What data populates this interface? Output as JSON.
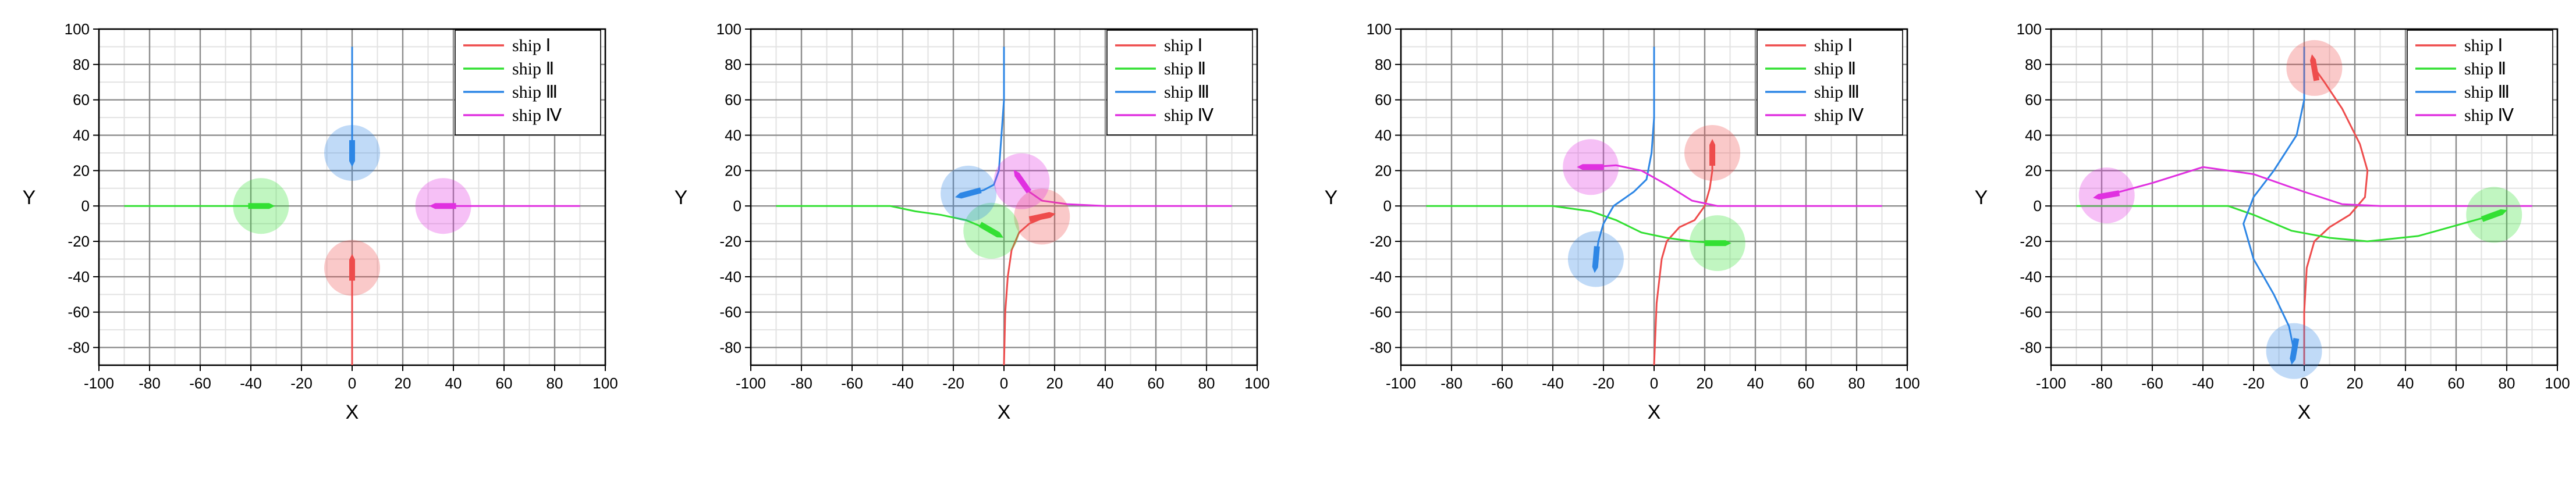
{
  "colors": {
    "ship1": "#ee4c4c",
    "ship2": "#33e033",
    "ship3": "#2d86e5",
    "ship4": "#e030e0",
    "grid_major": "#8c8c8c",
    "grid_minor": "#e2e2e2",
    "axis": "#000000"
  },
  "chart_data": [
    {
      "type": "line",
      "title": "",
      "xlabel": "X",
      "ylabel": "Y",
      "xlim": [
        -100,
        100
      ],
      "ylim": [
        -90,
        100
      ],
      "xticks": [
        "-100",
        "-80",
        "-60",
        "-40",
        "-20",
        "0",
        "20",
        "40",
        "60",
        "80",
        "100"
      ],
      "yticks": [
        "-80",
        "-60",
        "-40",
        "-20",
        "0",
        "20",
        "40",
        "60",
        "80",
        "100"
      ],
      "grid": true,
      "legend_position": "top-right",
      "series": [
        {
          "name": "ship Ⅰ",
          "color_key": "ship1",
          "x": [
            0,
            0,
            0,
            0
          ],
          "y": [
            -90,
            -70,
            -50,
            -35
          ],
          "ship": [
            0,
            -35
          ],
          "heading": 90
        },
        {
          "name": "ship Ⅱ",
          "color_key": "ship2",
          "x": [
            -90,
            -70,
            -50,
            -36
          ],
          "y": [
            0,
            0,
            0,
            0
          ],
          "ship": [
            -36,
            0
          ],
          "heading": 0
        },
        {
          "name": "ship Ⅲ",
          "color_key": "ship3",
          "x": [
            0,
            0,
            0,
            0
          ],
          "y": [
            90,
            70,
            50,
            30
          ],
          "ship": [
            0,
            30
          ],
          "heading": -90
        },
        {
          "name": "ship Ⅳ",
          "color_key": "ship4",
          "x": [
            90,
            70,
            50,
            36
          ],
          "y": [
            0,
            0,
            0,
            0
          ],
          "ship": [
            36,
            0
          ],
          "heading": 180
        }
      ]
    },
    {
      "type": "line",
      "title": "",
      "xlabel": "X",
      "ylabel": "Y",
      "xlim": [
        -100,
        100
      ],
      "ylim": [
        -90,
        100
      ],
      "xticks": [
        "-100",
        "-80",
        "-60",
        "-40",
        "-20",
        "0",
        "20",
        "40",
        "60",
        "80",
        "100"
      ],
      "yticks": [
        "-80",
        "-60",
        "-40",
        "-20",
        "0",
        "20",
        "40",
        "60",
        "80",
        "100"
      ],
      "grid": true,
      "legend_position": "top-right",
      "series": [
        {
          "name": "ship Ⅰ",
          "color_key": "ship1",
          "x": [
            0,
            0.5,
            1.5,
            3,
            6,
            10,
            15
          ],
          "y": [
            -90,
            -60,
            -40,
            -25,
            -15,
            -10,
            -7
          ],
          "ship": [
            15,
            -6
          ],
          "heading": 12
        },
        {
          "name": "ship Ⅱ",
          "color_key": "ship2",
          "x": [
            -90,
            -60,
            -45,
            -35,
            -25,
            -15,
            -5
          ],
          "y": [
            0,
            0,
            0,
            -3,
            -5,
            -8,
            -14
          ],
          "ship": [
            -5,
            -14
          ],
          "heading": -30
        },
        {
          "name": "ship Ⅲ",
          "color_key": "ship3",
          "x": [
            0,
            0,
            -1,
            -2,
            -4,
            -8,
            -13
          ],
          "y": [
            90,
            60,
            40,
            20,
            12,
            9,
            7
          ],
          "ship": [
            -14,
            7
          ],
          "heading": 195
        },
        {
          "name": "ship Ⅳ",
          "color_key": "ship4",
          "x": [
            90,
            60,
            40,
            25,
            15,
            10,
            7
          ],
          "y": [
            0,
            0,
            0,
            1,
            3,
            8,
            13
          ],
          "ship": [
            7,
            14
          ],
          "heading": 125
        }
      ]
    },
    {
      "type": "line",
      "title": "",
      "xlabel": "X",
      "ylabel": "Y",
      "xlim": [
        -100,
        100
      ],
      "ylim": [
        -90,
        100
      ],
      "xticks": [
        "-100",
        "-80",
        "-60",
        "-40",
        "-20",
        "0",
        "20",
        "40",
        "60",
        "80",
        "100"
      ],
      "yticks": [
        "-80",
        "-60",
        "-40",
        "-20",
        "0",
        "20",
        "40",
        "60",
        "80",
        "100"
      ],
      "grid": true,
      "legend_position": "top-right",
      "series": [
        {
          "name": "ship Ⅰ",
          "color_key": "ship1",
          "x": [
            0,
            1,
            3,
            5,
            10,
            16,
            20,
            22,
            23,
            23
          ],
          "y": [
            -90,
            -55,
            -30,
            -20,
            -12,
            -8,
            0,
            10,
            20,
            30
          ],
          "ship": [
            23,
            30
          ],
          "heading": 90
        },
        {
          "name": "ship Ⅱ",
          "color_key": "ship2",
          "x": [
            -90,
            -60,
            -40,
            -25,
            -15,
            -5,
            5,
            15,
            25
          ],
          "y": [
            0,
            0,
            0,
            -3,
            -8,
            -15,
            -18,
            -20,
            -21
          ],
          "ship": [
            25,
            -21
          ],
          "heading": 0
        },
        {
          "name": "ship Ⅲ",
          "color_key": "ship3",
          "x": [
            0,
            0,
            -1,
            -3,
            -8,
            -16,
            -20,
            -22,
            -23
          ],
          "y": [
            90,
            50,
            30,
            15,
            8,
            0,
            -10,
            -20,
            -30
          ],
          "ship": [
            -23,
            -30
          ],
          "heading": -95
        },
        {
          "name": "ship Ⅳ",
          "color_key": "ship4",
          "x": [
            90,
            60,
            40,
            25,
            15,
            5,
            -5,
            -15,
            -25
          ],
          "y": [
            0,
            0,
            0,
            0,
            3,
            12,
            20,
            23,
            22
          ],
          "ship": [
            -25,
            22
          ],
          "heading": 180
        }
      ]
    },
    {
      "type": "line",
      "title": "",
      "xlabel": "X",
      "ylabel": "Y",
      "xlim": [
        -100,
        100
      ],
      "ylim": [
        -90,
        100
      ],
      "xticks": [
        "-100",
        "-80",
        "-60",
        "-40",
        "-20",
        "0",
        "20",
        "40",
        "60",
        "80",
        "100"
      ],
      "yticks": [
        "-80",
        "-60",
        "-40",
        "-20",
        "0",
        "20",
        "40",
        "60",
        "80",
        "100"
      ],
      "grid": true,
      "legend_position": "top-right",
      "series": [
        {
          "name": "ship Ⅰ",
          "color_key": "ship1",
          "x": [
            0,
            0,
            1,
            4,
            10,
            18,
            24,
            25,
            22,
            15,
            8,
            4
          ],
          "y": [
            -90,
            -60,
            -35,
            -20,
            -12,
            -5,
            5,
            20,
            35,
            55,
            70,
            78
          ],
          "ship": [
            4,
            78
          ],
          "heading": 100
        },
        {
          "name": "ship Ⅱ",
          "color_key": "ship2",
          "x": [
            -90,
            -55,
            -30,
            -20,
            -5,
            10,
            25,
            45,
            60,
            75
          ],
          "y": [
            0,
            0,
            0,
            -5,
            -14,
            -18,
            -20,
            -17,
            -11,
            -5
          ],
          "ship": [
            75,
            -5
          ],
          "heading": 20
        },
        {
          "name": "ship Ⅲ",
          "color_key": "ship3",
          "x": [
            0,
            0,
            -3,
            -12,
            -20,
            -24,
            -20,
            -12,
            -6,
            -4
          ],
          "y": [
            90,
            60,
            40,
            20,
            5,
            -10,
            -30,
            -50,
            -68,
            -82
          ],
          "ship": [
            -4,
            -82
          ],
          "heading": -100
        },
        {
          "name": "ship Ⅳ",
          "color_key": "ship4",
          "x": [
            90,
            60,
            30,
            15,
            0,
            -20,
            -40,
            -60,
            -78
          ],
          "y": [
            0,
            0,
            0,
            1,
            8,
            18,
            22,
            13,
            6
          ],
          "ship": [
            -78,
            6
          ],
          "heading": 190
        }
      ]
    }
  ]
}
